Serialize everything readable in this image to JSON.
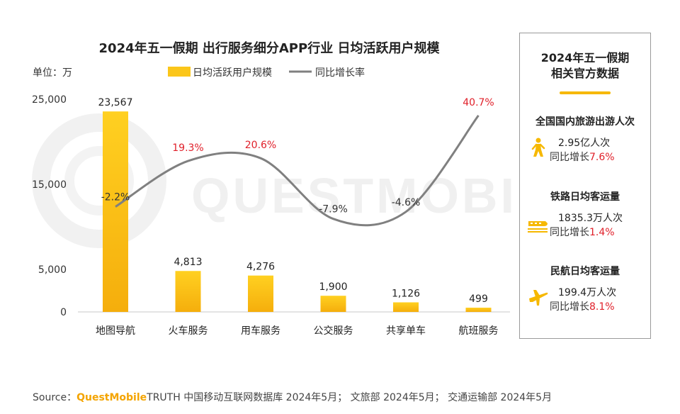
{
  "chart_data": {
    "type": "bar",
    "title": "2024年五一假期 出行服务细分APP行业 日均活跃用户规模",
    "unit_label": "单位：万",
    "categories": [
      "地图导航",
      "火车服务",
      "用车服务",
      "公交服务",
      "共享单车",
      "航班服务"
    ],
    "series": [
      {
        "name": "日均活跃用户规模",
        "type": "bar",
        "values": [
          23567,
          4813,
          4276,
          1900,
          1126,
          499
        ],
        "color": "#fbc61a"
      },
      {
        "name": "同比增长率",
        "type": "line",
        "values": [
          -2.2,
          19.3,
          20.6,
          -7.9,
          -4.6,
          40.7
        ],
        "labels": [
          "-2.2%",
          "19.3%",
          "20.6%",
          "-7.9%",
          "-4.6%",
          "40.7%"
        ],
        "color": "#808080"
      }
    ],
    "bar_labels": [
      "23,567",
      "4,813",
      "4,276",
      "1,900",
      "1,126",
      "499"
    ],
    "y_ticks": [
      "25,000",
      "15,000",
      "5,000",
      "0"
    ],
    "ylim": [
      0,
      25000
    ],
    "legend_position": "top",
    "grid": false
  },
  "side_panel": {
    "title_line1": "2024年五一假期",
    "title_line2": "相关官方数据",
    "stats": [
      {
        "name": "全国国内旅游出游人次",
        "value": "2.95亿人次",
        "growth_prefix": "同比增长",
        "growth": "7.6%",
        "icon": "walking-person-icon"
      },
      {
        "name": "铁路日均客运量",
        "value": "1835.3万人次",
        "growth_prefix": "同比增长",
        "growth": "1.4%",
        "icon": "train-icon"
      },
      {
        "name": "民航日均客运量",
        "value": "199.4万人次",
        "growth_prefix": "同比增长",
        "growth": "8.1%",
        "icon": "airplane-icon"
      }
    ]
  },
  "source": {
    "prefix": "Source：",
    "brand": "QuestMobile",
    "rest": "TRUTH 中国移动互联网数据库 2024年5月； 文旅部 2024年5月； 交通运输部 2024年5月"
  },
  "watermark": "QUESTMOBILE",
  "colors": {
    "accent": "#f6b800",
    "negative": "#e0202a",
    "line": "#808080"
  }
}
